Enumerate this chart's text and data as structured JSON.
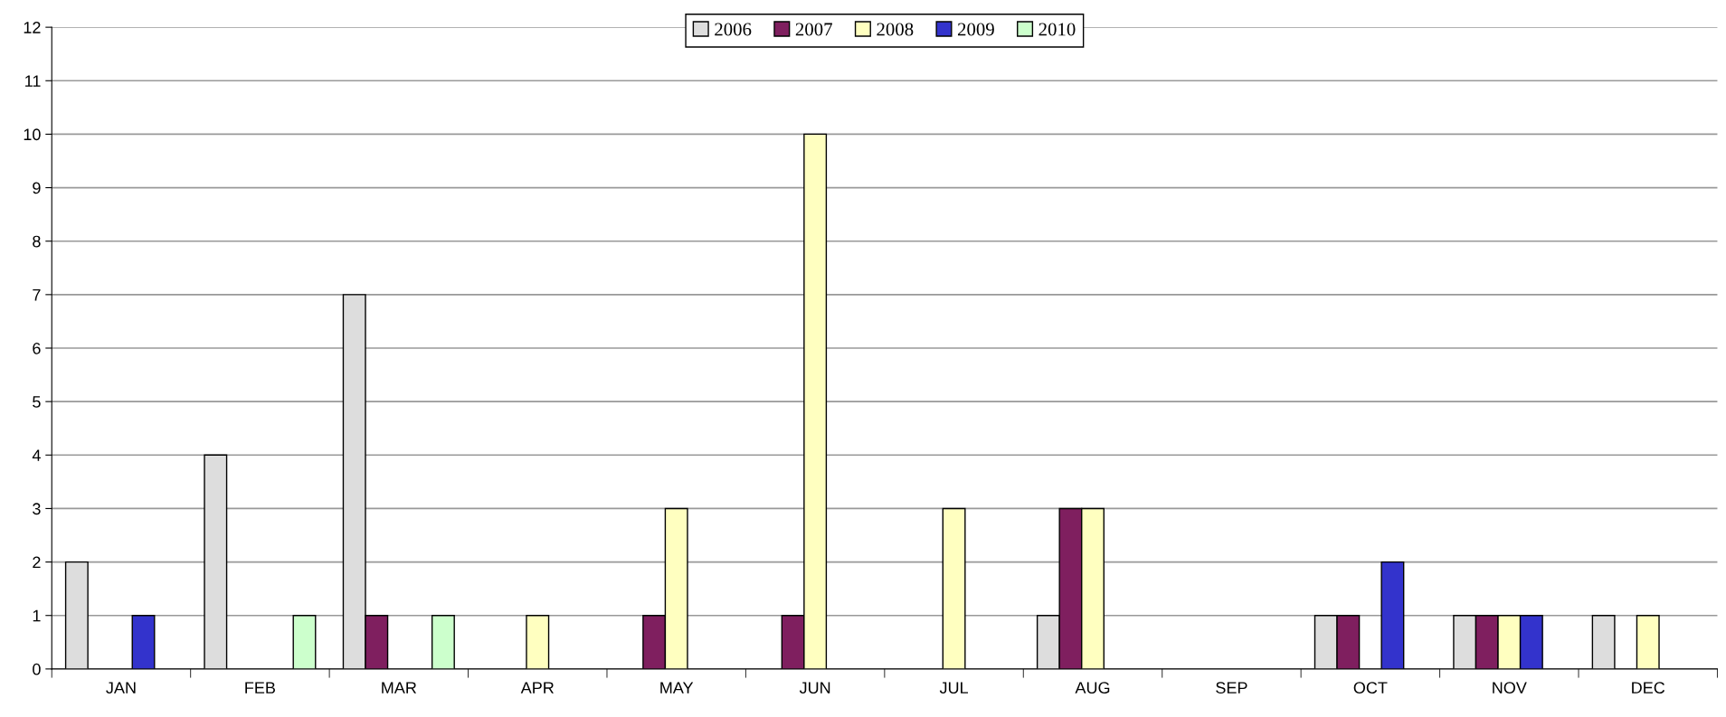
{
  "chart_data": {
    "type": "bar",
    "categories": [
      "JAN",
      "FEB",
      "MAR",
      "APR",
      "MAY",
      "JUN",
      "JUL",
      "AUG",
      "SEP",
      "OCT",
      "NOV",
      "DEC"
    ],
    "series": [
      {
        "name": "2006",
        "color": "#dddddd",
        "values": [
          2,
          4,
          7,
          null,
          null,
          null,
          null,
          1,
          null,
          1,
          1,
          1
        ]
      },
      {
        "name": "2007",
        "color": "#7f1f5f",
        "values": [
          null,
          null,
          1,
          null,
          1,
          1,
          null,
          3,
          null,
          1,
          1,
          null
        ]
      },
      {
        "name": "2008",
        "color": "#ffffc0",
        "values": [
          null,
          null,
          null,
          1,
          3,
          10,
          3,
          3,
          null,
          null,
          1,
          1
        ]
      },
      {
        "name": "2009",
        "color": "#3333cc",
        "values": [
          1,
          null,
          null,
          null,
          null,
          null,
          null,
          null,
          null,
          2,
          1,
          null
        ]
      },
      {
        "name": "2010",
        "color": "#ccffcc",
        "values": [
          null,
          1,
          1,
          null,
          null,
          null,
          null,
          null,
          null,
          null,
          null,
          null
        ]
      }
    ],
    "ylim": [
      0,
      12
    ],
    "yticks": [
      0,
      1,
      2,
      3,
      4,
      5,
      6,
      7,
      8,
      9,
      10,
      11,
      12
    ],
    "grid": "y",
    "legend": "top"
  }
}
